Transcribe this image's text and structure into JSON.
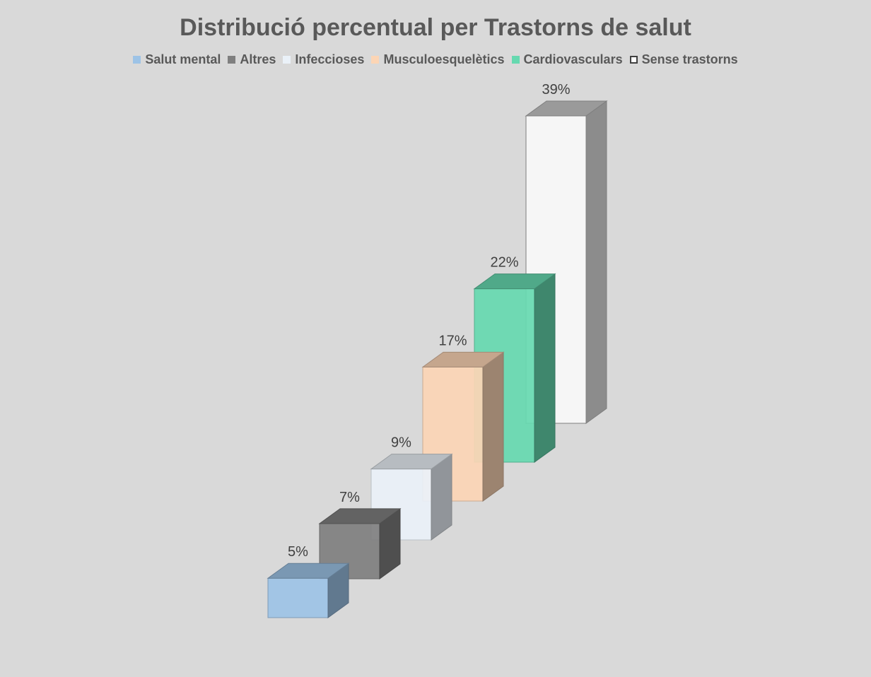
{
  "chart_data": {
    "type": "bar",
    "title": "Distribució percentual per Trastorns de salut",
    "categories": [
      "Salut mental",
      "Altres",
      "Infeccioses",
      "Musculoesquelètics",
      "Cardiovasculars",
      "Sense trastorns"
    ],
    "values": [
      5,
      7,
      9,
      17,
      22,
      39
    ],
    "value_labels": [
      "5%",
      "7%",
      "9%",
      "17%",
      "22%",
      "39%"
    ],
    "unit": "%",
    "legend_position": "top",
    "grid": false,
    "style": "3d-column",
    "colors": [
      "#9dc3e6",
      "#7f7f7f",
      "#eaf1f8",
      "#fcd5b5",
      "#66d9b0",
      "#ffffff"
    ]
  }
}
